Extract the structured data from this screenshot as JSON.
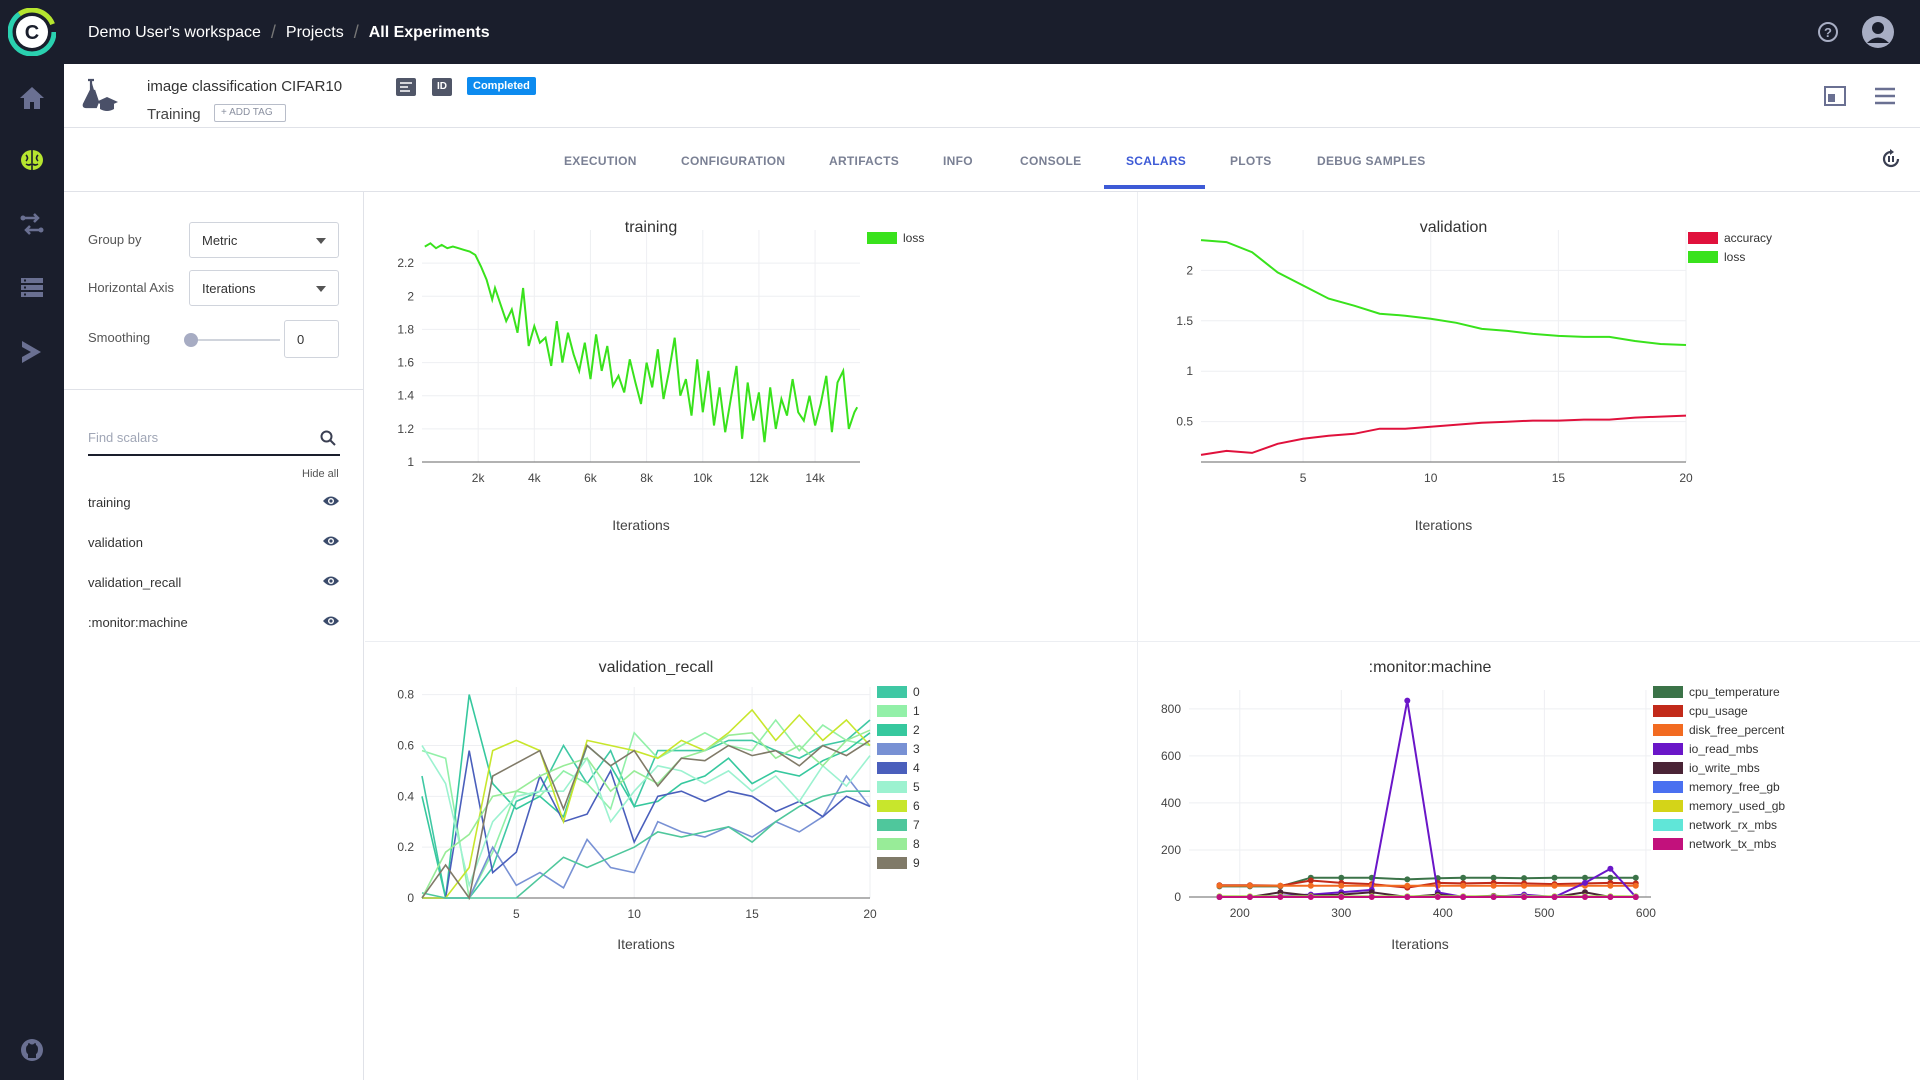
{
  "topbar": {
    "breadcrumb": [
      "Demo User's workspace",
      "Projects",
      "All Experiments"
    ]
  },
  "experiment": {
    "title": "image classification CIFAR10",
    "type": "Training",
    "add_tag": "+ ADD TAG",
    "id_badge": "ID",
    "status": "Completed"
  },
  "tabs": [
    "EXECUTION",
    "CONFIGURATION",
    "ARTIFACTS",
    "INFO",
    "CONSOLE",
    "SCALARS",
    "PLOTS",
    "DEBUG SAMPLES"
  ],
  "active_tab": "SCALARS",
  "sidebar": {
    "group_by_label": "Group by",
    "group_by_value": "Metric",
    "horizontal_axis_label": "Horizontal Axis",
    "horizontal_axis_value": "Iterations",
    "smoothing_label": "Smoothing",
    "smoothing_value": "0",
    "search_placeholder": "Find scalars",
    "hide_all": "Hide all",
    "scalars": [
      "training",
      "validation",
      "validation_recall",
      ":monitor:machine"
    ]
  },
  "colors": {
    "nav_bg": "#1a1e2c",
    "accent": "#3d5ad6",
    "status": "#0d8bef",
    "loss": "#39e21c",
    "accuracy": "#e0113c"
  },
  "chart_data": [
    {
      "type": "line",
      "title": "training",
      "xlabel": "Iterations",
      "ylabel": "",
      "xlim": [
        0,
        15600
      ],
      "ylim": [
        1,
        2.4
      ],
      "xticks": [
        "2k",
        "4k",
        "6k",
        "8k",
        "10k",
        "12k",
        "14k"
      ],
      "xtick_values": [
        2000,
        4000,
        6000,
        8000,
        10000,
        12000,
        14000
      ],
      "yticks": [
        "1",
        "1.2",
        "1.4",
        "1.6",
        "1.8",
        "2",
        "2.2"
      ],
      "ytick_values": [
        1,
        1.2,
        1.4,
        1.6,
        1.8,
        2,
        2.2
      ],
      "legend": "top-right",
      "series": [
        {
          "name": "loss",
          "color": "#39e21c",
          "x": [
            100,
            300,
            500,
            700,
            900,
            1100,
            1300,
            1500,
            1700,
            1900,
            2100,
            2300,
            2500,
            2600,
            2800,
            3000,
            3200,
            3400,
            3600,
            3800,
            4000,
            4200,
            4400,
            4600,
            4800,
            5000,
            5200,
            5400,
            5600,
            5800,
            6000,
            6200,
            6400,
            6600,
            6800,
            7000,
            7200,
            7400,
            7600,
            7800,
            8000,
            8200,
            8400,
            8600,
            8800,
            9000,
            9200,
            9400,
            9600,
            9800,
            10000,
            10200,
            10400,
            10600,
            10800,
            11000,
            11200,
            11400,
            11600,
            11800,
            12000,
            12200,
            12400,
            12600,
            12800,
            13000,
            13200,
            13400,
            13600,
            13800,
            14000,
            14200,
            14400,
            14600,
            14800,
            15000,
            15200,
            15400,
            15500
          ],
          "y": [
            2.3,
            2.32,
            2.29,
            2.31,
            2.29,
            2.3,
            2.29,
            2.28,
            2.27,
            2.25,
            2.18,
            2.1,
            1.98,
            2.05,
            1.95,
            1.85,
            1.92,
            1.78,
            2.05,
            1.7,
            1.82,
            1.72,
            1.75,
            1.58,
            1.85,
            1.6,
            1.78,
            1.65,
            1.55,
            1.72,
            1.5,
            1.77,
            1.55,
            1.7,
            1.46,
            1.52,
            1.42,
            1.62,
            1.48,
            1.35,
            1.6,
            1.45,
            1.68,
            1.38,
            1.55,
            1.75,
            1.4,
            1.5,
            1.28,
            1.62,
            1.3,
            1.55,
            1.22,
            1.45,
            1.18,
            1.38,
            1.58,
            1.14,
            1.48,
            1.25,
            1.42,
            1.12,
            1.45,
            1.2,
            1.38,
            1.28,
            1.5,
            1.3,
            1.25,
            1.4,
            1.22,
            1.35,
            1.52,
            1.18,
            1.48,
            1.55,
            1.2,
            1.3,
            1.33
          ]
        }
      ]
    },
    {
      "type": "line",
      "title": "validation",
      "xlabel": "Iterations",
      "ylabel": "",
      "xlim": [
        1,
        20
      ],
      "ylim": [
        0.1,
        2.4
      ],
      "xticks": [
        "5",
        "10",
        "15",
        "20"
      ],
      "xtick_values": [
        5,
        10,
        15,
        20
      ],
      "yticks": [
        "0.5",
        "1",
        "1.5",
        "2"
      ],
      "ytick_values": [
        0.5,
        1,
        1.5,
        2
      ],
      "legend": "top-right",
      "series": [
        {
          "name": "accuracy",
          "color": "#e0113c",
          "x": [
            1,
            2,
            3,
            4,
            5,
            6,
            7,
            8,
            9,
            10,
            11,
            12,
            13,
            14,
            15,
            16,
            17,
            18,
            19,
            20
          ],
          "y": [
            0.17,
            0.21,
            0.19,
            0.28,
            0.33,
            0.36,
            0.38,
            0.43,
            0.43,
            0.45,
            0.47,
            0.49,
            0.5,
            0.51,
            0.51,
            0.52,
            0.52,
            0.54,
            0.55,
            0.56
          ]
        },
        {
          "name": "loss",
          "color": "#39e21c",
          "x": [
            1,
            2,
            3,
            4,
            5,
            6,
            7,
            8,
            9,
            10,
            11,
            12,
            13,
            14,
            15,
            16,
            17,
            18,
            19,
            20
          ],
          "y": [
            2.3,
            2.28,
            2.18,
            1.98,
            1.85,
            1.72,
            1.65,
            1.57,
            1.55,
            1.52,
            1.48,
            1.42,
            1.4,
            1.37,
            1.35,
            1.34,
            1.34,
            1.3,
            1.27,
            1.26
          ]
        }
      ]
    },
    {
      "type": "line",
      "title": "validation_recall",
      "xlabel": "Iterations",
      "ylabel": "",
      "xlim": [
        1,
        20
      ],
      "ylim": [
        0,
        0.83
      ],
      "xticks": [
        "5",
        "10",
        "15",
        "20"
      ],
      "xtick_values": [
        5,
        10,
        15,
        20
      ],
      "yticks": [
        "0",
        "0.2",
        "0.4",
        "0.6",
        "0.8"
      ],
      "ytick_values": [
        0,
        0.2,
        0.4,
        0.6,
        0.8
      ],
      "legend": "right",
      "x": [
        1,
        2,
        3,
        4,
        5,
        6,
        7,
        8,
        9,
        10,
        11,
        12,
        13,
        14,
        15,
        16,
        17,
        18,
        19,
        20
      ],
      "series": [
        {
          "name": "0",
          "color": "#3fc8a4",
          "values": [
            0.48,
            0.0,
            0.0,
            0.12,
            0.38,
            0.42,
            0.6,
            0.45,
            0.58,
            0.36,
            0.58,
            0.58,
            0.58,
            0.62,
            0.62,
            0.58,
            0.55,
            0.6,
            0.62,
            0.7
          ]
        },
        {
          "name": "1",
          "color": "#92f0a8",
          "values": [
            0.58,
            0.55,
            0.0,
            0.18,
            0.42,
            0.4,
            0.5,
            0.45,
            0.35,
            0.65,
            0.55,
            0.6,
            0.65,
            0.6,
            0.58,
            0.7,
            0.58,
            0.68,
            0.62,
            0.6
          ]
        },
        {
          "name": "2",
          "color": "#36c89e",
          "values": [
            0.4,
            0.0,
            0.8,
            0.45,
            0.35,
            0.4,
            0.32,
            0.6,
            0.52,
            0.36,
            0.38,
            0.45,
            0.48,
            0.55,
            0.45,
            0.5,
            0.48,
            0.54,
            0.58,
            0.65
          ]
        },
        {
          "name": "3",
          "color": "#7891d4",
          "values": [
            0.0,
            0.0,
            0.0,
            0.2,
            0.05,
            0.1,
            0.04,
            0.23,
            0.12,
            0.1,
            0.3,
            0.26,
            0.24,
            0.28,
            0.24,
            0.3,
            0.26,
            0.32,
            0.48,
            0.36
          ]
        },
        {
          "name": "4",
          "color": "#4a5fbc",
          "values": [
            0.0,
            0.0,
            0.58,
            0.1,
            0.18,
            0.48,
            0.3,
            0.33,
            0.5,
            0.22,
            0.4,
            0.42,
            0.38,
            0.42,
            0.4,
            0.34,
            0.38,
            0.32,
            0.4,
            0.36
          ]
        },
        {
          "name": "5",
          "color": "#9cf2d0",
          "values": [
            0.6,
            0.45,
            0.05,
            0.3,
            0.4,
            0.42,
            0.42,
            0.55,
            0.3,
            0.42,
            0.52,
            0.5,
            0.45,
            0.5,
            0.42,
            0.48,
            0.38,
            0.52,
            0.44,
            0.56
          ]
        },
        {
          "name": "6",
          "color": "#c8e62c",
          "values": [
            0.0,
            0.0,
            0.12,
            0.58,
            0.62,
            0.58,
            0.3,
            0.62,
            0.6,
            0.58,
            0.55,
            0.62,
            0.58,
            0.65,
            0.74,
            0.62,
            0.72,
            0.62,
            0.7,
            0.6
          ]
        },
        {
          "name": "7",
          "color": "#4fc79c",
          "values": [
            0.02,
            0.0,
            0.0,
            0.0,
            0.0,
            0.08,
            0.16,
            0.12,
            0.16,
            0.2,
            0.26,
            0.24,
            0.26,
            0.28,
            0.22,
            0.3,
            0.36,
            0.4,
            0.42,
            0.42
          ]
        },
        {
          "name": "8",
          "color": "#98ec98",
          "values": [
            0.0,
            0.18,
            0.25,
            0.4,
            0.42,
            0.48,
            0.52,
            0.55,
            0.42,
            0.5,
            0.45,
            0.55,
            0.58,
            0.64,
            0.65,
            0.55,
            0.6,
            0.52,
            0.62,
            0.66
          ]
        },
        {
          "name": "9",
          "color": "#807a68",
          "values": [
            0.0,
            0.13,
            0.0,
            0.48,
            0.53,
            0.58,
            0.35,
            0.6,
            0.52,
            0.58,
            0.44,
            0.55,
            0.54,
            0.6,
            0.56,
            0.58,
            0.52,
            0.6,
            0.56,
            0.62
          ]
        }
      ]
    },
    {
      "type": "line",
      "title": ":monitor:machine",
      "xlabel": "Iterations",
      "ylabel": "",
      "xlim": [
        150,
        605
      ],
      "ylim": [
        0,
        880
      ],
      "xticks": [
        "200",
        "300",
        "400",
        "500",
        "600"
      ],
      "xtick_values": [
        200,
        300,
        400,
        500,
        600
      ],
      "yticks": [
        "0",
        "200",
        "400",
        "600",
        "800"
      ],
      "ytick_values": [
        0,
        200,
        400,
        600,
        800
      ],
      "legend": "right",
      "x": [
        180,
        210,
        240,
        270,
        300,
        330,
        365,
        395,
        420,
        450,
        480,
        510,
        540,
        565,
        590
      ],
      "series": [
        {
          "name": "cpu_temperature",
          "color": "#3b7348",
          "values": [
            45,
            45,
            45,
            82,
            82,
            82,
            75,
            80,
            82,
            82,
            80,
            82,
            82,
            82,
            82
          ]
        },
        {
          "name": "cpu_usage",
          "color": "#c22a1a",
          "values": [
            50,
            50,
            48,
            70,
            60,
            55,
            40,
            60,
            58,
            60,
            58,
            55,
            58,
            60,
            58
          ]
        },
        {
          "name": "disk_free_percent",
          "color": "#f26b21",
          "values": [
            48,
            48,
            48,
            48,
            48,
            48,
            48,
            48,
            48,
            48,
            48,
            48,
            48,
            48,
            48
          ]
        },
        {
          "name": "io_read_mbs",
          "color": "#6a16c8",
          "values": [
            0,
            0,
            5,
            10,
            20,
            30,
            835,
            20,
            0,
            0,
            10,
            0,
            60,
            120,
            0
          ]
        },
        {
          "name": "io_write_mbs",
          "color": "#4a2436",
          "values": [
            0,
            0,
            20,
            5,
            10,
            20,
            0,
            10,
            0,
            5,
            0,
            0,
            20,
            0,
            0
          ]
        },
        {
          "name": "memory_free_gb",
          "color": "#4a70f0",
          "values": [
            2,
            2,
            2,
            2,
            2,
            2,
            2,
            2,
            2,
            2,
            2,
            2,
            2,
            2,
            2
          ]
        },
        {
          "name": "memory_used_gb",
          "color": "#d4d418",
          "values": [
            3,
            3,
            3,
            3,
            3,
            3,
            3,
            3,
            3,
            3,
            3,
            3,
            3,
            3,
            3
          ]
        },
        {
          "name": "network_rx_mbs",
          "color": "#60e6d8",
          "values": [
            1,
            1,
            1,
            1,
            1,
            1,
            1,
            1,
            1,
            1,
            1,
            1,
            1,
            1,
            1
          ]
        },
        {
          "name": "network_tx_mbs",
          "color": "#c2117c",
          "values": [
            0,
            0,
            0,
            0,
            0,
            0,
            0,
            0,
            0,
            0,
            0,
            0,
            0,
            0,
            0
          ]
        }
      ]
    }
  ]
}
